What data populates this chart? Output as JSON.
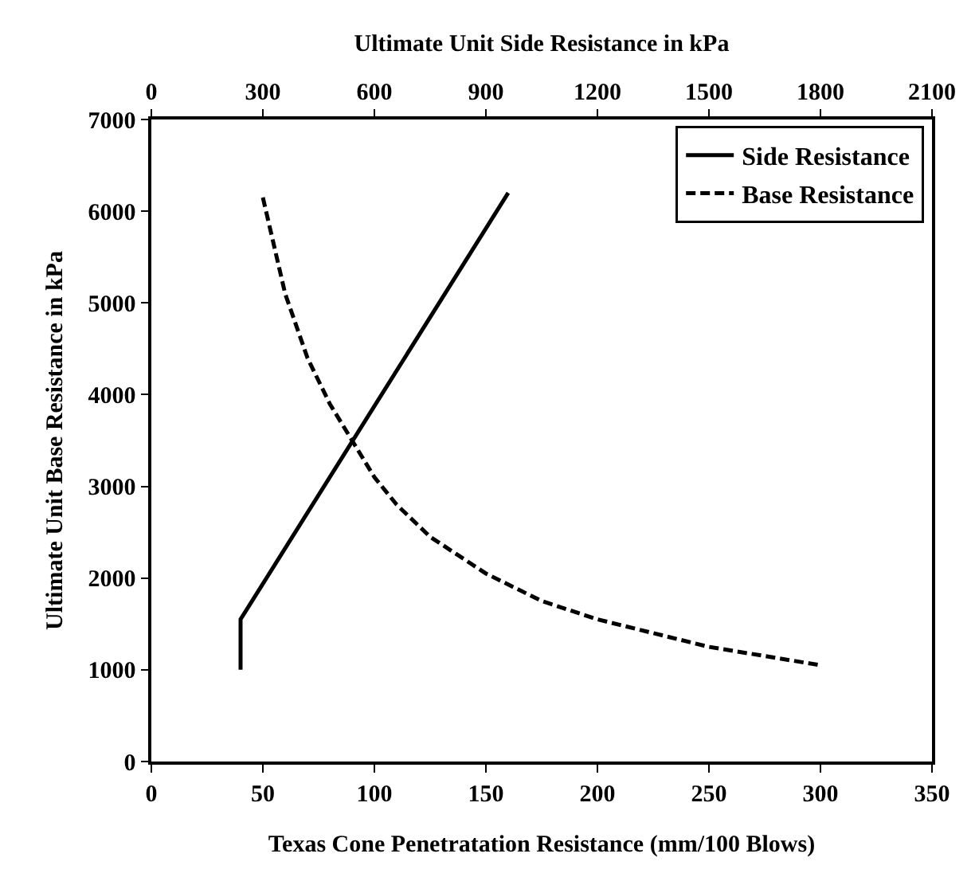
{
  "chart_data": {
    "type": "line",
    "xlabel": "Texas Cone Penetratation Resistance (mm/100 Blows)",
    "ylabel": "Ultimate Unit Base Resistance in kPa",
    "x2label": "Ultimate Unit Side Resistance in kPa",
    "xlim": [
      0,
      350
    ],
    "xticks": [
      0,
      50,
      100,
      150,
      200,
      250,
      300,
      350
    ],
    "ylim": [
      0,
      7000
    ],
    "yticks": [
      0,
      1000,
      2000,
      3000,
      4000,
      5000,
      6000,
      7000
    ],
    "x2lim": [
      0,
      2100
    ],
    "x2ticks": [
      0,
      300,
      600,
      900,
      1200,
      1500,
      1800,
      2100
    ],
    "legend": "top right",
    "marker": "none",
    "series": [
      {
        "name": "Side Resistance",
        "color": "#000000",
        "line_style": "solid",
        "x": [
          40,
          40,
          160
        ],
        "values": [
          1000,
          1550,
          6200
        ]
      },
      {
        "name": "Base Resistance",
        "color": "#000000",
        "line_style": "dashed",
        "x": [
          50,
          60,
          70,
          80,
          90,
          100,
          110,
          125,
          150,
          175,
          200,
          225,
          250,
          275,
          300
        ],
        "values": [
          6150,
          5100,
          4400,
          3900,
          3500,
          3100,
          2800,
          2450,
          2050,
          1750,
          1550,
          1400,
          1250,
          1150,
          1050
        ]
      }
    ]
  }
}
